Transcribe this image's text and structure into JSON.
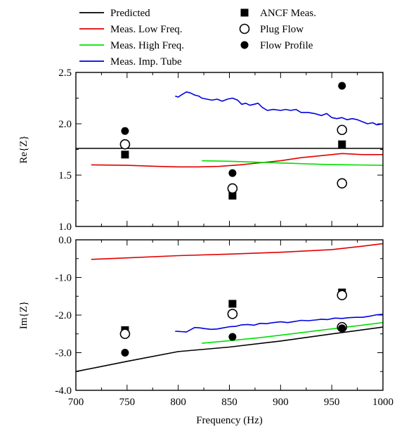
{
  "legend": {
    "entries": [
      {
        "label": "Predicted",
        "kind": "line",
        "color": "#000000"
      },
      {
        "label": "Meas. Low Freq.",
        "kind": "line",
        "color": "#e00000"
      },
      {
        "label": "Meas. High Freq.",
        "kind": "line",
        "color": "#00e000"
      },
      {
        "label": "Meas. Imp. Tube",
        "kind": "line",
        "color": "#0000e0"
      },
      {
        "label": "ANCF Meas.",
        "kind": "marker",
        "marker": "filled-square",
        "color": "#000000"
      },
      {
        "label": "Plug Flow",
        "kind": "marker",
        "marker": "open-circle",
        "color": "#000000"
      },
      {
        "label": "Flow Profile",
        "kind": "marker",
        "marker": "filled-circle",
        "color": "#000000"
      }
    ]
  },
  "chart_data": [
    {
      "type": "line",
      "ylabel": "Re{Z}",
      "xlabel": "",
      "xlim": [
        700,
        1000
      ],
      "ylim": [
        1.0,
        2.5
      ],
      "x_ticks": [
        700,
        750,
        800,
        850,
        900,
        950,
        1000
      ],
      "y_ticks": [
        1.0,
        1.5,
        2.0,
        2.5
      ],
      "y_tick_labels": [
        "1.0",
        "1.5",
        "2.0",
        "2.5"
      ],
      "grid": false,
      "series": [
        {
          "name": "Predicted",
          "color": "#000000",
          "points": [
            [
              700,
              1.76
            ],
            [
              1000,
              1.76
            ]
          ]
        },
        {
          "name": "Meas. Low Freq.",
          "color": "#e00000",
          "points": [
            [
              715,
              1.6
            ],
            [
              750,
              1.595
            ],
            [
              780,
              1.585
            ],
            [
              800,
              1.58
            ],
            [
              820,
              1.58
            ],
            [
              840,
              1.585
            ],
            [
              860,
              1.6
            ],
            [
              880,
              1.62
            ],
            [
              900,
              1.64
            ],
            [
              920,
              1.67
            ],
            [
              940,
              1.69
            ],
            [
              960,
              1.71
            ],
            [
              980,
              1.7
            ],
            [
              1000,
              1.7
            ]
          ]
        },
        {
          "name": "Meas. High Freq.",
          "color": "#00e000",
          "points": [
            [
              823,
              1.64
            ],
            [
              850,
              1.635
            ],
            [
              880,
              1.625
            ],
            [
              910,
              1.615
            ],
            [
              940,
              1.605
            ],
            [
              970,
              1.6
            ],
            [
              1000,
              1.595
            ]
          ]
        },
        {
          "name": "Meas. Imp. Tube",
          "color": "#0000e0",
          "points": [
            [
              797,
              2.27
            ],
            [
              800,
              2.26
            ],
            [
              803,
              2.28
            ],
            [
              808,
              2.31
            ],
            [
              812,
              2.3
            ],
            [
              816,
              2.28
            ],
            [
              820,
              2.27
            ],
            [
              823,
              2.25
            ],
            [
              828,
              2.24
            ],
            [
              833,
              2.23
            ],
            [
              838,
              2.24
            ],
            [
              843,
              2.22
            ],
            [
              848,
              2.24
            ],
            [
              853,
              2.25
            ],
            [
              858,
              2.23
            ],
            [
              862,
              2.19
            ],
            [
              866,
              2.2
            ],
            [
              870,
              2.18
            ],
            [
              874,
              2.19
            ],
            [
              878,
              2.2
            ],
            [
              882,
              2.16
            ],
            [
              887,
              2.13
            ],
            [
              893,
              2.14
            ],
            [
              900,
              2.13
            ],
            [
              905,
              2.14
            ],
            [
              910,
              2.13
            ],
            [
              915,
              2.14
            ],
            [
              920,
              2.11
            ],
            [
              927,
              2.11
            ],
            [
              933,
              2.1
            ],
            [
              940,
              2.08
            ],
            [
              945,
              2.1
            ],
            [
              950,
              2.06
            ],
            [
              955,
              2.05
            ],
            [
              960,
              2.06
            ],
            [
              965,
              2.04
            ],
            [
              970,
              2.05
            ],
            [
              975,
              2.04
            ],
            [
              980,
              2.02
            ],
            [
              985,
              2.0
            ],
            [
              990,
              2.01
            ],
            [
              994,
              1.99
            ],
            [
              1000,
              2.0
            ]
          ]
        }
      ],
      "markers": [
        {
          "name": "ANCF Meas.",
          "marker": "filled-square",
          "points": [
            [
              748,
              1.7
            ],
            [
              853,
              1.3
            ],
            [
              960,
              1.8
            ]
          ]
        },
        {
          "name": "Plug Flow",
          "marker": "open-circle",
          "points": [
            [
              748,
              1.8
            ],
            [
              853,
              1.37
            ],
            [
              960,
              1.94
            ],
            [
              960,
              1.42
            ]
          ]
        },
        {
          "name": "Flow Profile",
          "marker": "filled-circle",
          "points": [
            [
              748,
              1.93
            ],
            [
              853,
              1.52
            ],
            [
              960,
              2.37
            ]
          ]
        }
      ]
    },
    {
      "type": "line",
      "ylabel": "Im{Z}",
      "xlabel": "Frequency (Hz)",
      "xlim": [
        700,
        1000
      ],
      "ylim": [
        -4.0,
        0.0
      ],
      "x_ticks": [
        700,
        750,
        800,
        850,
        900,
        950,
        1000
      ],
      "x_tick_labels": [
        "700",
        "750",
        "800",
        "850",
        "900",
        "950",
        "1000"
      ],
      "y_ticks": [
        -4.0,
        -3.0,
        -2.0,
        -1.0,
        0.0
      ],
      "y_tick_labels": [
        "-4.0",
        "-3.0",
        "-2.0",
        "-1.0",
        "0.0"
      ],
      "grid": false,
      "series": [
        {
          "name": "Predicted",
          "color": "#000000",
          "points": [
            [
              700,
              -3.5
            ],
            [
              750,
              -3.23
            ],
            [
              800,
              -2.97
            ],
            [
              850,
              -2.85
            ],
            [
              900,
              -2.69
            ],
            [
              950,
              -2.5
            ],
            [
              1000,
              -2.32
            ]
          ]
        },
        {
          "name": "Meas. Low Freq.",
          "color": "#e00000",
          "points": [
            [
              715,
              -0.52
            ],
            [
              750,
              -0.48
            ],
            [
              800,
              -0.42
            ],
            [
              850,
              -0.38
            ],
            [
              900,
              -0.33
            ],
            [
              950,
              -0.26
            ],
            [
              980,
              -0.17
            ],
            [
              1000,
              -0.1
            ]
          ]
        },
        {
          "name": "Meas. High Freq.",
          "color": "#00e000",
          "points": [
            [
              823,
              -2.75
            ],
            [
              850,
              -2.68
            ],
            [
              880,
              -2.6
            ],
            [
              910,
              -2.5
            ],
            [
              940,
              -2.4
            ],
            [
              970,
              -2.3
            ],
            [
              1000,
              -2.2
            ]
          ]
        },
        {
          "name": "Meas. Imp. Tube",
          "color": "#0000e0",
          "points": [
            [
              797,
              -2.43
            ],
            [
              803,
              -2.44
            ],
            [
              808,
              -2.45
            ],
            [
              812,
              -2.39
            ],
            [
              816,
              -2.33
            ],
            [
              821,
              -2.34
            ],
            [
              826,
              -2.36
            ],
            [
              832,
              -2.38
            ],
            [
              838,
              -2.37
            ],
            [
              844,
              -2.34
            ],
            [
              850,
              -2.31
            ],
            [
              856,
              -2.3
            ],
            [
              862,
              -2.26
            ],
            [
              868,
              -2.25
            ],
            [
              874,
              -2.27
            ],
            [
              880,
              -2.22
            ],
            [
              886,
              -2.23
            ],
            [
              893,
              -2.2
            ],
            [
              900,
              -2.18
            ],
            [
              907,
              -2.2
            ],
            [
              914,
              -2.17
            ],
            [
              920,
              -2.14
            ],
            [
              927,
              -2.15
            ],
            [
              934,
              -2.13
            ],
            [
              940,
              -2.11
            ],
            [
              946,
              -2.12
            ],
            [
              953,
              -2.08
            ],
            [
              960,
              -2.09
            ],
            [
              967,
              -2.07
            ],
            [
              974,
              -2.06
            ],
            [
              980,
              -2.06
            ],
            [
              987,
              -2.03
            ],
            [
              994,
              -1.99
            ],
            [
              1000,
              -1.98
            ]
          ]
        }
      ],
      "markers": [
        {
          "name": "ANCF Meas.",
          "marker": "filled-square",
          "points": [
            [
              748,
              -2.4
            ],
            [
              853,
              -1.7
            ],
            [
              960,
              -1.4
            ]
          ]
        },
        {
          "name": "Plug Flow",
          "marker": "open-circle",
          "points": [
            [
              748,
              -2.5
            ],
            [
              853,
              -1.97
            ],
            [
              960,
              -1.47
            ],
            [
              960,
              -2.32
            ]
          ]
        },
        {
          "name": "Flow Profile",
          "marker": "filled-circle",
          "points": [
            [
              748,
              -3.0
            ],
            [
              853,
              -2.58
            ],
            [
              960,
              -2.35
            ]
          ]
        }
      ]
    }
  ]
}
